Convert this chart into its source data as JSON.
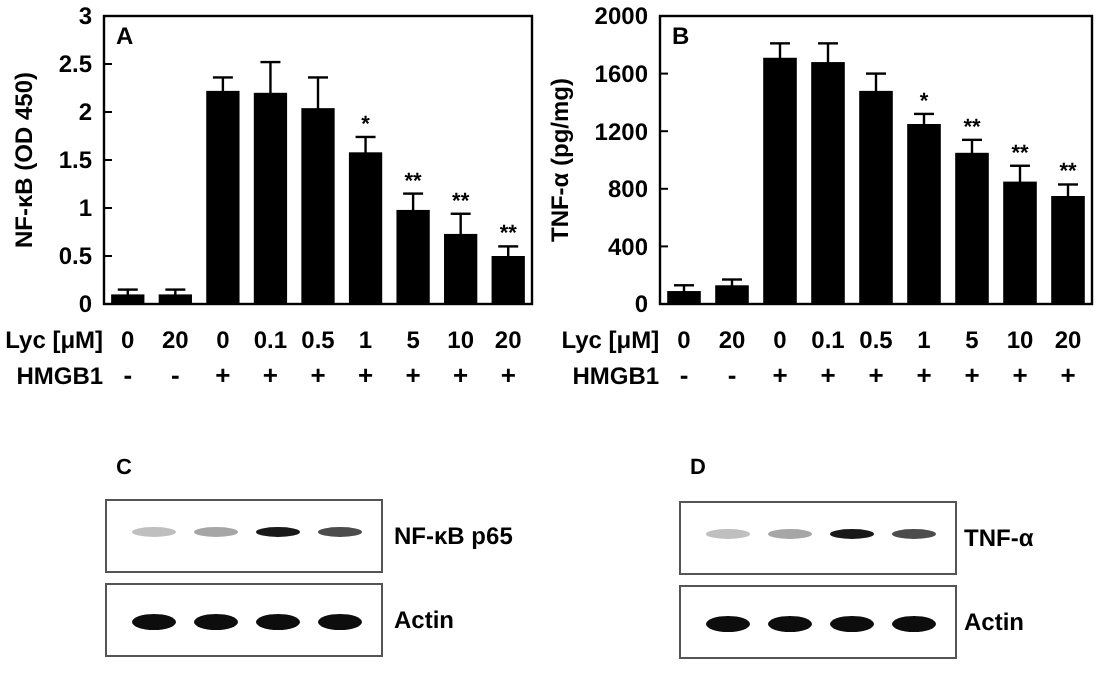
{
  "chart_data": [
    {
      "type": "bar",
      "title": "A",
      "ylabel": "NF-κB (OD 450)",
      "xlabel": "Lyc [μM]",
      "categories": [
        "0",
        "20",
        "0",
        "0.1",
        "0.5",
        "1",
        "5",
        "10",
        "20"
      ],
      "values": [
        0.1,
        0.1,
        2.22,
        2.2,
        2.04,
        1.58,
        0.98,
        0.73,
        0.5
      ],
      "errors": [
        0.05,
        0.05,
        0.14,
        0.32,
        0.32,
        0.16,
        0.17,
        0.21,
        0.1
      ],
      "color": "#000000",
      "value_labels": [
        null,
        null,
        null,
        null,
        null,
        "*",
        "**",
        "**",
        "**"
      ],
      "annotations": [
        "HMGB1",
        "-",
        "-",
        "+",
        "+",
        "+",
        "+",
        "+",
        "+",
        "+"
      ],
      "ylim": [
        0,
        3
      ],
      "yticks": [
        0,
        0.5,
        1,
        1.5,
        2,
        2.5,
        3
      ]
    },
    {
      "type": "bar",
      "title": "B",
      "ylabel": "TNF-α (pg/mg)",
      "xlabel": "Lyc [μM]",
      "categories": [
        "0",
        "20",
        "0",
        "0.1",
        "0.5",
        "1",
        "5",
        "10",
        "20"
      ],
      "values": [
        90,
        130,
        1710,
        1680,
        1480,
        1250,
        1050,
        850,
        750
      ],
      "errors": [
        40,
        40,
        100,
        130,
        120,
        70,
        90,
        110,
        80
      ],
      "color": "#000000",
      "value_labels": [
        null,
        null,
        null,
        null,
        null,
        "*",
        "**",
        "**",
        "**"
      ],
      "annotations": [
        "HMGB1",
        "-",
        "-",
        "+",
        "+",
        "+",
        "+",
        "+",
        "+",
        "+"
      ],
      "ylim": [
        0,
        2000
      ],
      "yticks": [
        0,
        400,
        800,
        1200,
        1600,
        2000
      ]
    },
    {
      "type": "other",
      "title": "C",
      "annotations": [
        "NF-κB p65",
        "Actin"
      ]
    },
    {
      "type": "other",
      "title": "D",
      "annotations": [
        "TNF-α",
        "Actin"
      ]
    }
  ]
}
